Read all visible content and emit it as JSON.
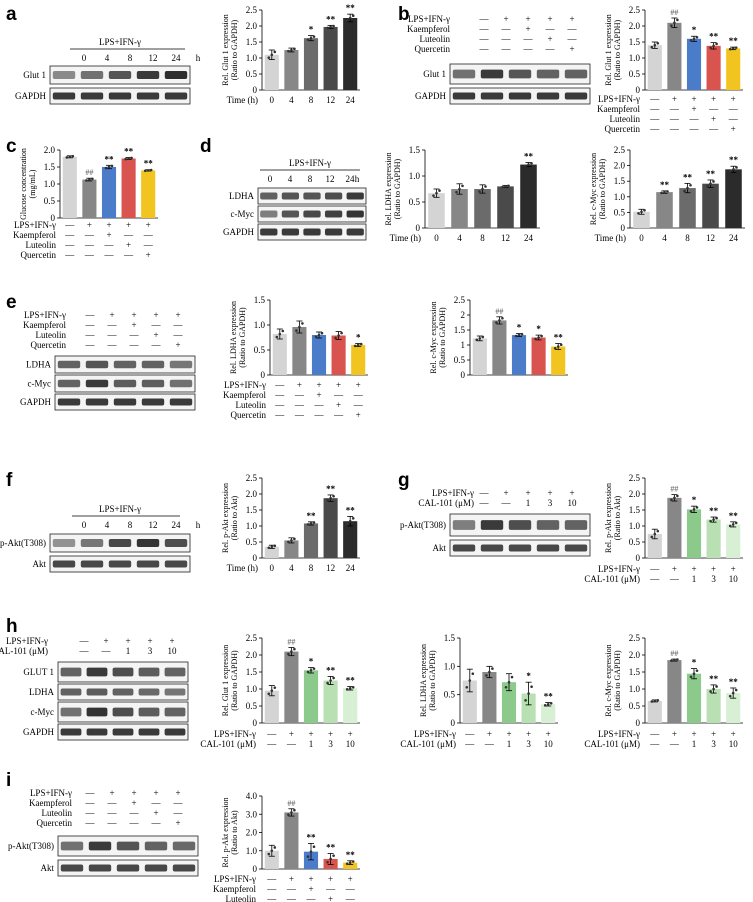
{
  "panels": {
    "a": "a",
    "b": "b",
    "c": "c",
    "d": "d",
    "e": "e",
    "f": "f",
    "g": "g",
    "h": "h",
    "i": "i"
  },
  "labels": {
    "lps": "LPS+IFN-γ",
    "kaempferol": "Kaempferol",
    "luteolin": "Luteolin",
    "quercetin": "Quercetin",
    "cal": "CAL-101 (μM)",
    "time": "Time (h)",
    "h": "h",
    "plus": "+",
    "minus": "—"
  },
  "blots": {
    "glut1": "Glut 1",
    "GLUT1": "GLUT 1",
    "gapdh": "GAPDH",
    "ldha": "LDHA",
    "cmyc": "c-Myc",
    "pakt": "p-Akt(T308)",
    "akt": "Akt"
  },
  "colors": {
    "c1": "#d4d4d4",
    "c2": "#878787",
    "c3": "#6b6b6b",
    "c4": "#4a4a4a",
    "c5": "#2b2b2b",
    "blue": "#4a7cc9",
    "red": "#d9534f",
    "yellow": "#f2c41f",
    "g1": "#8cca8c",
    "g2": "#b9e0b3",
    "g3": "#d7efd3"
  },
  "chart_data": [
    {
      "id": "a",
      "type": "bar",
      "categories": [
        "0",
        "4",
        "8",
        "12",
        "24"
      ],
      "values": [
        1.1,
        1.25,
        1.62,
        1.97,
        2.25
      ],
      "errors": [
        0.15,
        0.06,
        0.08,
        0.05,
        0.12
      ],
      "sig": [
        "",
        "",
        "*",
        "**",
        "**"
      ],
      "ylabel": "Rel. Glut 1 expression (Ratio to GAPDH)",
      "xlabel": "Time (h)",
      "ylim": [
        0,
        2.5
      ],
      "yticks": [
        "0",
        "0.5",
        "1.0",
        "1.5",
        "2.0",
        "2.5"
      ]
    },
    {
      "id": "b",
      "type": "bar",
      "values": [
        1.4,
        2.1,
        1.6,
        1.38,
        1.3
      ],
      "errors": [
        0.1,
        0.15,
        0.08,
        0.1,
        0.04
      ],
      "sig": [
        "",
        "##",
        "*",
        "**",
        "**"
      ],
      "ylabel": "Rel. Glut 1 expression (Ratio to GAPDH)",
      "ylim": [
        0,
        2.5
      ],
      "yticks": [
        "0",
        "0.5",
        "1.0",
        "1.5",
        "2.0",
        "2.5"
      ]
    },
    {
      "id": "c",
      "type": "bar",
      "values": [
        1.8,
        1.13,
        1.5,
        1.75,
        1.4
      ],
      "errors": [
        0.03,
        0.04,
        0.05,
        0.03,
        0.02
      ],
      "sig": [
        "",
        "##",
        "**",
        "**",
        "**"
      ],
      "ylabel": "Glucose concentration (mg/mL)",
      "ylim": [
        0,
        2.0
      ],
      "yticks": [
        "0",
        "0.5",
        "1.0",
        "1.5",
        "2.0"
      ]
    },
    {
      "id": "d1",
      "type": "bar",
      "categories": [
        "0",
        "4",
        "8",
        "12",
        "24"
      ],
      "values": [
        0.67,
        0.75,
        0.75,
        0.8,
        1.22
      ],
      "errors": [
        0.08,
        0.1,
        0.08,
        0.02,
        0.04
      ],
      "sig": [
        "",
        "",
        "",
        "",
        "**"
      ],
      "ylabel": "Rel. LDHA expression (Ratio to GAPDH)",
      "xlabel": "Time (h)",
      "ylim": [
        0,
        1.5
      ],
      "yticks": [
        "0",
        "0.5",
        "1.0",
        "1.5"
      ]
    },
    {
      "id": "d2",
      "type": "bar",
      "categories": [
        "0",
        "4",
        "8",
        "12",
        "24"
      ],
      "values": [
        0.52,
        1.15,
        1.28,
        1.42,
        1.88
      ],
      "errors": [
        0.08,
        0.04,
        0.15,
        0.12,
        0.1
      ],
      "sig": [
        "",
        "**",
        "**",
        "**",
        "**"
      ],
      "ylabel": "Rel. c-Myc expression (Ratio to GAPDH)",
      "xlabel": "Time (h)",
      "ylim": [
        0,
        2.5
      ],
      "yticks": [
        "0",
        "0.5",
        "1.0",
        "1.5",
        "2.0",
        "2.5"
      ]
    },
    {
      "id": "e1",
      "type": "bar",
      "values": [
        0.82,
        0.96,
        0.8,
        0.79,
        0.6
      ],
      "errors": [
        0.1,
        0.12,
        0.06,
        0.08,
        0.03
      ],
      "sig": [
        "",
        "",
        "",
        "",
        "*"
      ],
      "ylabel": "Rel. LDHA expression (Ratio to GAPDH)",
      "ylim": [
        0,
        1.5
      ],
      "yticks": [
        "0",
        "0.5",
        "1.0",
        "1.5"
      ]
    },
    {
      "id": "e2",
      "type": "bar",
      "values": [
        1.22,
        1.82,
        1.33,
        1.25,
        0.95
      ],
      "errors": [
        0.08,
        0.12,
        0.05,
        0.08,
        0.1
      ],
      "sig": [
        "",
        "##",
        "*",
        "*",
        "**"
      ],
      "ylabel": "Rel. c-Myc expression (Ratio to GAPDH)",
      "ylim": [
        0,
        2.5
      ],
      "yticks": [
        "0",
        "0.5",
        "1",
        "1.5",
        "2",
        "2.5"
      ]
    },
    {
      "id": "f",
      "type": "bar",
      "categories": [
        "0",
        "4",
        "8",
        "12",
        "24"
      ],
      "values": [
        0.35,
        0.55,
        1.08,
        1.87,
        1.15
      ],
      "errors": [
        0.05,
        0.08,
        0.05,
        0.1,
        0.15
      ],
      "sig": [
        "",
        "",
        "**",
        "**",
        "**"
      ],
      "ylabel": "Rel. p-Akt expression (Ratio to Akt)",
      "xlabel": "Time (h)",
      "ylim": [
        0,
        2.5
      ],
      "yticks": [
        "0",
        "0.5",
        "1.0",
        "1.5",
        "2.0",
        "2.5"
      ]
    },
    {
      "id": "g",
      "type": "bar",
      "values": [
        0.75,
        1.88,
        1.52,
        1.2,
        1.05
      ],
      "errors": [
        0.15,
        0.1,
        0.1,
        0.08,
        0.08
      ],
      "sig": [
        "",
        "##",
        "*",
        "**",
        "**"
      ],
      "ylabel": "Rel. p-Akt expression (Ratio to Akt)",
      "ylim": [
        0,
        2.5
      ],
      "yticks": [
        "0",
        "0.5",
        "1.0",
        "1.5",
        "2.0",
        "2.5"
      ]
    },
    {
      "id": "h1",
      "type": "bar",
      "values": [
        0.95,
        2.1,
        1.55,
        1.25,
        1.02
      ],
      "errors": [
        0.15,
        0.12,
        0.08,
        0.12,
        0.05
      ],
      "sig": [
        "",
        "##",
        "*",
        "**",
        "**"
      ],
      "ylabel": "Rel. Glut 1 expression (Ratio to GAPDH)",
      "ylim": [
        0,
        2.5
      ],
      "yticks": [
        "0",
        "0.5",
        "1.0",
        "1.5",
        "2.0",
        "2.5"
      ]
    },
    {
      "id": "h2",
      "type": "bar",
      "values": [
        0.75,
        0.9,
        0.72,
        0.52,
        0.33
      ],
      "errors": [
        0.2,
        0.1,
        0.15,
        0.2,
        0.03
      ],
      "sig": [
        "",
        "",
        "",
        "*",
        "**"
      ],
      "ylabel": "Rel. LDHA expression (Ratio to GAPDH)",
      "ylim": [
        0,
        1.5
      ],
      "yticks": [
        "0",
        "0.5",
        "1.0",
        "1.5"
      ]
    },
    {
      "id": "h3",
      "type": "bar",
      "values": [
        0.65,
        1.85,
        1.45,
        1.0,
        0.88
      ],
      "errors": [
        0.03,
        0.03,
        0.15,
        0.12,
        0.15
      ],
      "sig": [
        "",
        "##",
        "*",
        "**",
        "**"
      ],
      "ylabel": "Rel. c-Myc expression (Ratio to GAPDH)",
      "ylim": [
        0,
        2.5
      ],
      "yticks": [
        "0",
        "0.5",
        "1.0",
        "1.5",
        "2.0",
        "2.5"
      ]
    },
    {
      "id": "i",
      "type": "bar",
      "values": [
        1.0,
        3.1,
        0.95,
        0.55,
        0.35
      ],
      "errors": [
        0.3,
        0.2,
        0.45,
        0.3,
        0.1
      ],
      "sig": [
        "",
        "##",
        "**",
        "**",
        "**"
      ],
      "ylabel": "Rel. p-Akt expression (Ratio to Akt)",
      "ylim": [
        0,
        4.0
      ],
      "yticks": [
        "0",
        "1.0",
        "2.0",
        "3.0",
        "4.0"
      ]
    }
  ]
}
